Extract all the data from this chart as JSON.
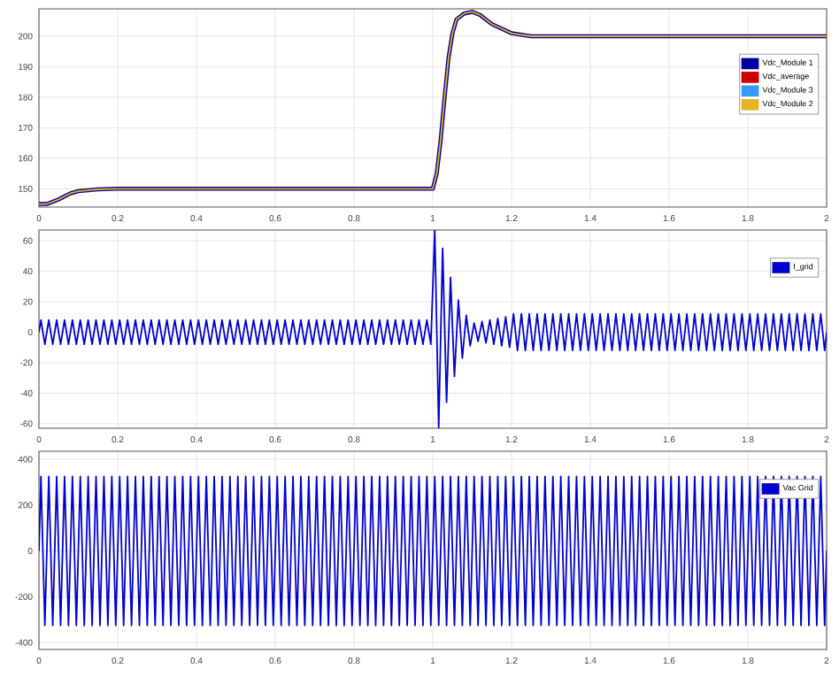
{
  "chart_data": [
    {
      "type": "line",
      "xlim": [
        0,
        2
      ],
      "ylim": [
        144,
        209
      ],
      "xticks": [
        0,
        0.2,
        0.4,
        0.6,
        0.8,
        1,
        1.2,
        1.4,
        1.6,
        1.8,
        2
      ],
      "yticks": [
        150,
        160,
        170,
        180,
        190,
        200
      ],
      "grid": true,
      "legend": "right",
      "series": [
        {
          "name": "Vdc_Module 1",
          "color": "#0000a0",
          "x": [
            0,
            0.02,
            0.05,
            0.08,
            0.1,
            0.15,
            0.2,
            1.0,
            1.01,
            1.02,
            1.03,
            1.04,
            1.05,
            1.06,
            1.08,
            1.1,
            1.12,
            1.15,
            1.2,
            1.25,
            1.3,
            2
          ],
          "values": [
            145,
            145,
            146.5,
            148.5,
            149.2,
            149.8,
            150,
            150,
            155,
            166,
            180,
            193,
            201,
            205.5,
            207.5,
            208,
            207,
            204,
            201,
            200,
            200,
            200
          ]
        },
        {
          "name": "Vdc_average",
          "color": "#cc0000"
        },
        {
          "name": "Vdc_Module 3",
          "color": "#3399ff"
        },
        {
          "name": "Vdc_Module 2",
          "color": "#e6b422",
          "x": [
            0,
            0.02,
            0.05,
            0.08,
            0.1,
            0.15,
            0.2,
            1.0,
            1.01,
            1.02,
            1.03,
            1.04,
            1.05,
            1.06,
            1.08,
            1.1,
            1.12,
            1.15,
            1.2,
            1.25,
            1.3,
            2
          ],
          "values": [
            145,
            145,
            146.5,
            148.5,
            149.2,
            149.8,
            150,
            150,
            155,
            166,
            180,
            193,
            201,
            205.5,
            207.5,
            208,
            207,
            204,
            201,
            200,
            200,
            200
          ]
        }
      ]
    },
    {
      "type": "line",
      "xlim": [
        0,
        2
      ],
      "ylim": [
        -63,
        67
      ],
      "xticks": [
        0,
        0.2,
        0.4,
        0.6,
        0.8,
        1,
        1.2,
        1.4,
        1.6,
        1.8,
        2
      ],
      "yticks": [
        -60,
        -40,
        -20,
        0,
        20,
        40,
        60
      ],
      "grid": true,
      "legend": "top right",
      "series": [
        {
          "name": "I_grid",
          "color": "#0000cc",
          "x": [
            0,
            0.005,
            0.015,
            0.025,
            0.035,
            0.045,
            0.055,
            0.065,
            0.075,
            0.085,
            0.095,
            0.105,
            0.115,
            0.125,
            0.135,
            0.145,
            0.155,
            0.165,
            0.175,
            0.185,
            0.195,
            0.205,
            0.215,
            0.225,
            0.235,
            0.245,
            0.255,
            0.265,
            0.275,
            0.285,
            0.295,
            0.305,
            0.315,
            0.325,
            0.335,
            0.345,
            0.355,
            0.365,
            0.375,
            0.385,
            0.395,
            0.405,
            0.415,
            0.425,
            0.435,
            0.445,
            0.455,
            0.465,
            0.475,
            0.485,
            0.495,
            0.505,
            0.515,
            0.525,
            0.535,
            0.545,
            0.555,
            0.565,
            0.575,
            0.585,
            0.595,
            0.605,
            0.615,
            0.625,
            0.635,
            0.645,
            0.655,
            0.665,
            0.675,
            0.685,
            0.695,
            0.705,
            0.715,
            0.725,
            0.735,
            0.745,
            0.755,
            0.765,
            0.775,
            0.785,
            0.795,
            0.805,
            0.815,
            0.825,
            0.835,
            0.845,
            0.855,
            0.865,
            0.875,
            0.885,
            0.895,
            0.905,
            0.915,
            0.925,
            0.935,
            0.945,
            0.955,
            0.965,
            0.975,
            0.985,
            0.995,
            1.005,
            1.015,
            1.025,
            1.035,
            1.045,
            1.055,
            1.065,
            1.075,
            1.085,
            1.095,
            1.105,
            1.115,
            1.125,
            1.135,
            1.145,
            1.155,
            1.165,
            1.175,
            1.185,
            1.195,
            1.205,
            1.215,
            1.225,
            1.235,
            1.245,
            1.255,
            1.265,
            1.275,
            1.285,
            1.295,
            1.305,
            1.315,
            1.325,
            1.335,
            1.345,
            1.355,
            1.365,
            1.375,
            1.385,
            1.395,
            1.405,
            1.415,
            1.425,
            1.435,
            1.445,
            1.455,
            1.465,
            1.475,
            1.485,
            1.495,
            1.505,
            1.515,
            1.525,
            1.535,
            1.545,
            1.555,
            1.565,
            1.575,
            1.585,
            1.595,
            1.605,
            1.615,
            1.625,
            1.635,
            1.645,
            1.655,
            1.665,
            1.675,
            1.685,
            1.695,
            1.705,
            1.715,
            1.725,
            1.735,
            1.745,
            1.755,
            1.765,
            1.775,
            1.785,
            1.795,
            1.805,
            1.815,
            1.825,
            1.835,
            1.845,
            1.855,
            1.865,
            1.875,
            1.885,
            1.895,
            1.905,
            1.915,
            1.925,
            1.935,
            1.945,
            1.955,
            1.965,
            1.975,
            1.985,
            1.995,
            2
          ],
          "values": [
            0,
            8,
            -8,
            8,
            -8,
            8,
            -8,
            8,
            -8,
            8,
            -8,
            8,
            -8,
            8,
            -8,
            8,
            -8,
            8,
            -8,
            8,
            -8,
            8,
            -8,
            8,
            -8,
            8,
            -8,
            8,
            -8,
            8,
            -8,
            8,
            -8,
            8,
            -8,
            8,
            -8,
            8,
            -8,
            8,
            -8,
            8,
            -8,
            8,
            -8,
            8,
            -8,
            8,
            -8,
            8,
            -8,
            8,
            -8,
            8,
            -8,
            8,
            -8,
            8,
            -8,
            8,
            -8,
            8,
            -8,
            8,
            -8,
            8,
            -8,
            8,
            -8,
            8,
            -8,
            8,
            -8,
            8,
            -8,
            8,
            -8,
            8,
            -8,
            8,
            -8,
            8,
            -8,
            8,
            -8,
            8,
            -8,
            8,
            -8,
            8,
            -8,
            8,
            -8,
            8,
            -8,
            8,
            -8,
            8,
            -8,
            8,
            -8,
            67,
            -63,
            55,
            -46,
            36,
            -29,
            21,
            -17,
            11,
            -9,
            6,
            -6,
            7,
            -7,
            8,
            -8,
            9,
            -9,
            10,
            -10,
            12,
            -12,
            12,
            -12,
            12,
            -12,
            12,
            -12,
            12,
            -12,
            12,
            -12,
            12,
            -12,
            12,
            -12,
            12,
            -12,
            12,
            -12,
            12,
            -12,
            12,
            -12,
            12,
            -12,
            12,
            -12,
            12,
            -12,
            12,
            -12,
            12,
            -12,
            12,
            -12,
            12,
            -12,
            12,
            -12,
            12,
            -12,
            12,
            -12,
            12,
            -12,
            12,
            -12,
            12,
            -12,
            12,
            -12,
            12,
            -12,
            12,
            -12,
            12,
            -12,
            12,
            -12,
            12,
            -12,
            12,
            -12,
            12,
            -12,
            12,
            -12,
            12,
            -12,
            12,
            -12,
            12,
            -12,
            12,
            -12,
            12,
            -12,
            12,
            -12,
            0
          ]
        }
      ]
    },
    {
      "type": "line",
      "xlim": [
        0,
        2
      ],
      "ylim": [
        -430,
        435
      ],
      "xticks": [
        0,
        0.2,
        0.4,
        0.6,
        0.8,
        1,
        1.2,
        1.4,
        1.6,
        1.8,
        2
      ],
      "yticks": [
        -400,
        -200,
        0,
        200,
        400
      ],
      "grid": true,
      "legend": "top right",
      "series": [
        {
          "name": "Vac Grid",
          "color": "#0000cc",
          "x": [
            0,
            0.005,
            0.015,
            0.025,
            0.035,
            0.045,
            0.055,
            0.065,
            0.075,
            0.085,
            0.095,
            0.105,
            0.115,
            0.125,
            0.135,
            0.145,
            0.155,
            0.165,
            0.175,
            0.185,
            0.195,
            0.205,
            0.215,
            0.225,
            0.235,
            0.245,
            0.255,
            0.265,
            0.275,
            0.285,
            0.295,
            0.305,
            0.315,
            0.325,
            0.335,
            0.345,
            0.355,
            0.365,
            0.375,
            0.385,
            0.395,
            0.405,
            0.415,
            0.425,
            0.435,
            0.445,
            0.455,
            0.465,
            0.475,
            0.485,
            0.495,
            0.505,
            0.515,
            0.525,
            0.535,
            0.545,
            0.555,
            0.565,
            0.575,
            0.585,
            0.595,
            0.605,
            0.615,
            0.625,
            0.635,
            0.645,
            0.655,
            0.665,
            0.675,
            0.685,
            0.695,
            0.705,
            0.715,
            0.725,
            0.735,
            0.745,
            0.755,
            0.765,
            0.775,
            0.785,
            0.795,
            0.805,
            0.815,
            0.825,
            0.835,
            0.845,
            0.855,
            0.865,
            0.875,
            0.885,
            0.895,
            0.905,
            0.915,
            0.925,
            0.935,
            0.945,
            0.955,
            0.965,
            0.975,
            0.985,
            0.995,
            1.005,
            1.015,
            1.025,
            1.035,
            1.045,
            1.055,
            1.065,
            1.075,
            1.085,
            1.095,
            1.105,
            1.115,
            1.125,
            1.135,
            1.145,
            1.155,
            1.165,
            1.175,
            1.185,
            1.195,
            1.205,
            1.215,
            1.225,
            1.235,
            1.245,
            1.255,
            1.265,
            1.275,
            1.285,
            1.295,
            1.305,
            1.315,
            1.325,
            1.335,
            1.345,
            1.355,
            1.365,
            1.375,
            1.385,
            1.395,
            1.405,
            1.415,
            1.425,
            1.435,
            1.445,
            1.455,
            1.465,
            1.475,
            1.485,
            1.495,
            1.505,
            1.515,
            1.525,
            1.535,
            1.545,
            1.555,
            1.565,
            1.575,
            1.585,
            1.595,
            1.605,
            1.615,
            1.625,
            1.635,
            1.645,
            1.655,
            1.665,
            1.675,
            1.685,
            1.695,
            1.705,
            1.715,
            1.725,
            1.735,
            1.745,
            1.755,
            1.765,
            1.775,
            1.785,
            1.795,
            1.805,
            1.815,
            1.825,
            1.835,
            1.845,
            1.855,
            1.865,
            1.875,
            1.885,
            1.895,
            1.905,
            1.915,
            1.925,
            1.935,
            1.945,
            1.955,
            1.965,
            1.975,
            1.985,
            1.995,
            2
          ],
          "values": [
            0,
            325,
            -325,
            325,
            -325,
            325,
            -325,
            325,
            -325,
            325,
            -325,
            325,
            -325,
            325,
            -325,
            325,
            -325,
            325,
            -325,
            325,
            -325,
            325,
            -325,
            325,
            -325,
            325,
            -325,
            325,
            -325,
            325,
            -325,
            325,
            -325,
            325,
            -325,
            325,
            -325,
            325,
            -325,
            325,
            -325,
            325,
            -325,
            325,
            -325,
            325,
            -325,
            325,
            -325,
            325,
            -325,
            325,
            -325,
            325,
            -325,
            325,
            -325,
            325,
            -325,
            325,
            -325,
            325,
            -325,
            325,
            -325,
            325,
            -325,
            325,
            -325,
            325,
            -325,
            325,
            -325,
            325,
            -325,
            325,
            -325,
            325,
            -325,
            325,
            -325,
            325,
            -325,
            325,
            -325,
            325,
            -325,
            325,
            -325,
            325,
            -325,
            325,
            -325,
            325,
            -325,
            325,
            -325,
            325,
            -325,
            325,
            -325,
            325,
            -325,
            325,
            -325,
            325,
            -325,
            325,
            -325,
            325,
            -325,
            325,
            -325,
            325,
            -325,
            325,
            -325,
            325,
            -325,
            325,
            -325,
            325,
            -325,
            325,
            -325,
            325,
            -325,
            325,
            -325,
            325,
            -325,
            325,
            -325,
            325,
            -325,
            325,
            -325,
            325,
            -325,
            325,
            -325,
            325,
            -325,
            325,
            -325,
            325,
            -325,
            325,
            -325,
            325,
            -325,
            325,
            -325,
            325,
            -325,
            325,
            -325,
            325,
            -325,
            325,
            -325,
            325,
            -325,
            325,
            -325,
            325,
            -325,
            325,
            -325,
            325,
            -325,
            325,
            -325,
            325,
            -325,
            325,
            -325,
            325,
            -325,
            325,
            -325,
            325,
            -325,
            325,
            -325,
            325,
            -325,
            325,
            -325,
            325,
            -325,
            325,
            -325,
            325,
            -325,
            325,
            -325,
            325,
            -325,
            325,
            -325,
            0
          ]
        }
      ]
    }
  ]
}
